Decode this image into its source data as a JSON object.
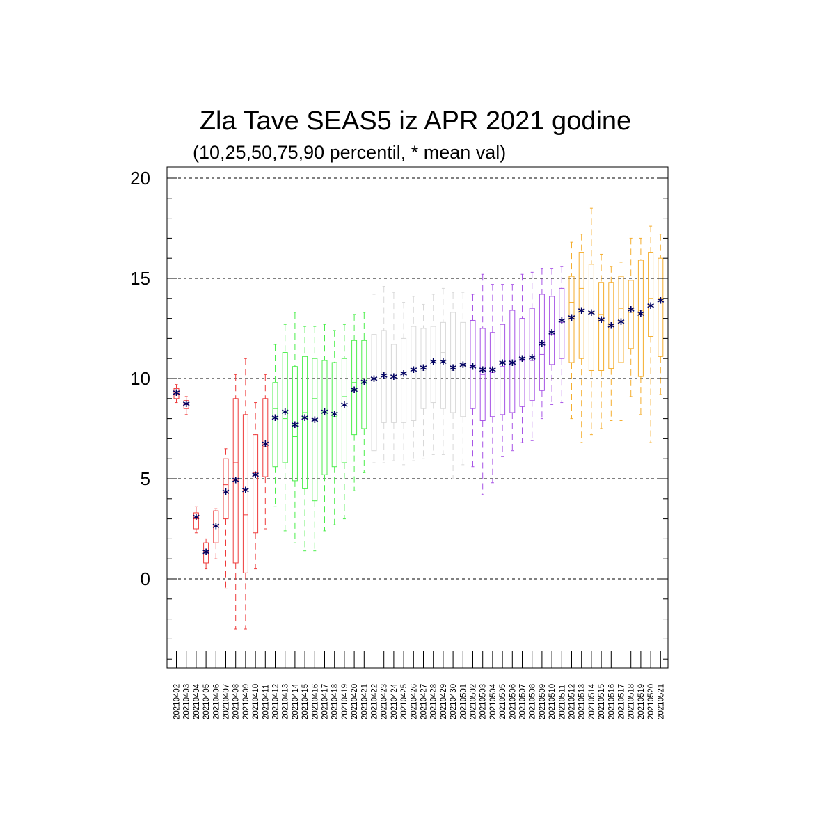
{
  "chart_data": {
    "type": "box",
    "title": "Zla Tave SEAS5 iz APR 2021 godine",
    "subtitle": "(10,25,50,75,90 percentil, * mean val)",
    "ylim": [
      -4.5,
      20.5
    ],
    "y_ticks": [
      0,
      5,
      10,
      15,
      20
    ],
    "y_tick_labels": [
      "0",
      "5",
      "10",
      "15",
      "20"
    ],
    "grid": "horizontal dashed at major ticks",
    "colors": {
      "red": "#ee3b3b",
      "green": "#4cee4c",
      "grey": "#d8d8d8",
      "purple": "#a855e6",
      "orange": "#f5ae2e",
      "mean_marker": "#000060"
    },
    "mean_marker": "*",
    "categories": [
      "20210402",
      "20210403",
      "20210404",
      "20210405",
      "20210406",
      "20210407",
      "20210408",
      "20210409",
      "20210410",
      "20210411",
      "20210412",
      "20210413",
      "20210414",
      "20210415",
      "20210416",
      "20210417",
      "20210418",
      "20210419",
      "20210420",
      "20210421",
      "20210422",
      "20210423",
      "20210424",
      "20210425",
      "20210426",
      "20210427",
      "20210428",
      "20210429",
      "20210430",
      "20210501",
      "20210502",
      "20210503",
      "20210504",
      "20210505",
      "20210506",
      "20210507",
      "20210508",
      "20210509",
      "20210510",
      "20210511",
      "20210512",
      "20210513",
      "20210514",
      "20210515",
      "20210516",
      "20210517",
      "20210518",
      "20210519",
      "20210520",
      "20210521"
    ],
    "series_color": [
      "red",
      "red",
      "red",
      "red",
      "red",
      "red",
      "red",
      "red",
      "red",
      "red",
      "green",
      "green",
      "green",
      "green",
      "green",
      "green",
      "green",
      "green",
      "green",
      "green",
      "grey",
      "grey",
      "grey",
      "grey",
      "grey",
      "grey",
      "grey",
      "grey",
      "grey",
      "grey",
      "purple",
      "purple",
      "purple",
      "purple",
      "purple",
      "purple",
      "purple",
      "purple",
      "purple",
      "purple",
      "orange",
      "orange",
      "orange",
      "orange",
      "orange",
      "orange",
      "orange",
      "orange",
      "orange",
      "orange"
    ],
    "p10": [
      8.8,
      8.2,
      2.3,
      0.5,
      1.0,
      -0.5,
      -2.5,
      -2.5,
      0.5,
      2.5,
      3.6,
      2.4,
      1.8,
      1.4,
      1.4,
      2.4,
      2.7,
      3.0,
      4.4,
      5.3,
      5.8,
      5.8,
      5.9,
      5.7,
      5.9,
      6.0,
      6.2,
      6.2,
      5.0,
      5.7,
      5.6,
      4.2,
      4.8,
      6.1,
      6.4,
      6.8,
      6.9,
      8.0,
      8.7,
      8.8,
      8.0,
      6.8,
      7.2,
      7.5,
      7.9,
      7.9,
      9.1,
      8.2,
      6.8,
      9.2
    ],
    "p25": [
      9.0,
      8.5,
      2.5,
      0.8,
      1.8,
      3.0,
      0.8,
      0.3,
      2.3,
      5.1,
      5.6,
      5.8,
      4.9,
      4.5,
      3.9,
      5.2,
      5.6,
      5.8,
      7.2,
      7.5,
      6.4,
      7.8,
      7.8,
      7.8,
      7.9,
      8.5,
      8.8,
      8.5,
      8.3,
      8.1,
      8.5,
      7.9,
      8.1,
      8.2,
      8.3,
      8.6,
      8.9,
      9.4,
      10.7,
      11.0,
      10.8,
      11.0,
      10.4,
      10.4,
      10.5,
      10.8,
      11.5,
      10.1,
      12.1,
      11.1
    ],
    "p50": [
      9.2,
      8.7,
      3.0,
      1.3,
      2.6,
      4.7,
      5.8,
      3.2,
      5.3,
      6.6,
      8.5,
      8.0,
      7.1,
      8.3,
      9.0,
      8.3,
      8.1,
      9.1,
      9.8,
      9.8,
      9.9,
      10.3,
      10.0,
      10.2,
      10.4,
      10.4,
      10.8,
      11.3,
      10.4,
      10.6,
      10.6,
      10.2,
      10.3,
      10.6,
      10.8,
      10.9,
      10.9,
      11.2,
      12.2,
      12.8,
      13.8,
      14.5,
      13.3,
      13.2,
      12.6,
      13.5,
      13.3,
      13.4,
      14.0,
      14.0
    ],
    "p75": [
      9.5,
      8.9,
      3.3,
      1.8,
      3.4,
      6.0,
      9.0,
      8.2,
      7.2,
      9.0,
      9.8,
      11.3,
      10.6,
      11.1,
      11.0,
      10.9,
      10.8,
      11.0,
      11.9,
      11.9,
      12.2,
      12.4,
      11.7,
      12.0,
      12.6,
      12.5,
      12.6,
      12.8,
      13.3,
      12.8,
      12.9,
      12.5,
      12.3,
      12.7,
      13.4,
      13.0,
      13.5,
      14.2,
      14.1,
      14.5,
      15.1,
      16.3,
      15.7,
      14.8,
      14.8,
      15.1,
      14.9,
      15.9,
      16.3,
      16.0
    ],
    "p90": [
      9.7,
      9.1,
      3.6,
      2.0,
      3.5,
      6.5,
      10.2,
      11.0,
      8.8,
      10.2,
      11.7,
      12.7,
      13.3,
      12.6,
      12.6,
      12.7,
      12.4,
      12.7,
      13.2,
      13.3,
      14.2,
      14.6,
      14.3,
      13.8,
      14.1,
      13.7,
      14.2,
      14.5,
      14.3,
      14.3,
      14.2,
      15.2,
      14.7,
      14.7,
      14.7,
      15.2,
      15.3,
      15.5,
      15.5,
      15.6,
      16.8,
      17.2,
      18.5,
      16.2,
      15.6,
      15.8,
      17.0,
      17.0,
      17.6,
      17.2
    ],
    "mean": [
      9.25,
      8.7,
      3.05,
      1.3,
      2.6,
      4.3,
      4.9,
      4.4,
      5.15,
      6.7,
      8.0,
      8.3,
      7.65,
      8.0,
      7.9,
      8.3,
      8.2,
      8.65,
      9.4,
      9.8,
      9.95,
      10.1,
      10.05,
      10.2,
      10.4,
      10.5,
      10.8,
      10.8,
      10.5,
      10.65,
      10.55,
      10.4,
      10.4,
      10.75,
      10.75,
      10.95,
      11.0,
      11.7,
      12.25,
      12.85,
      13.0,
      13.35,
      13.25,
      12.9,
      12.6,
      12.8,
      13.4,
      13.2,
      13.6,
      13.85
    ]
  }
}
